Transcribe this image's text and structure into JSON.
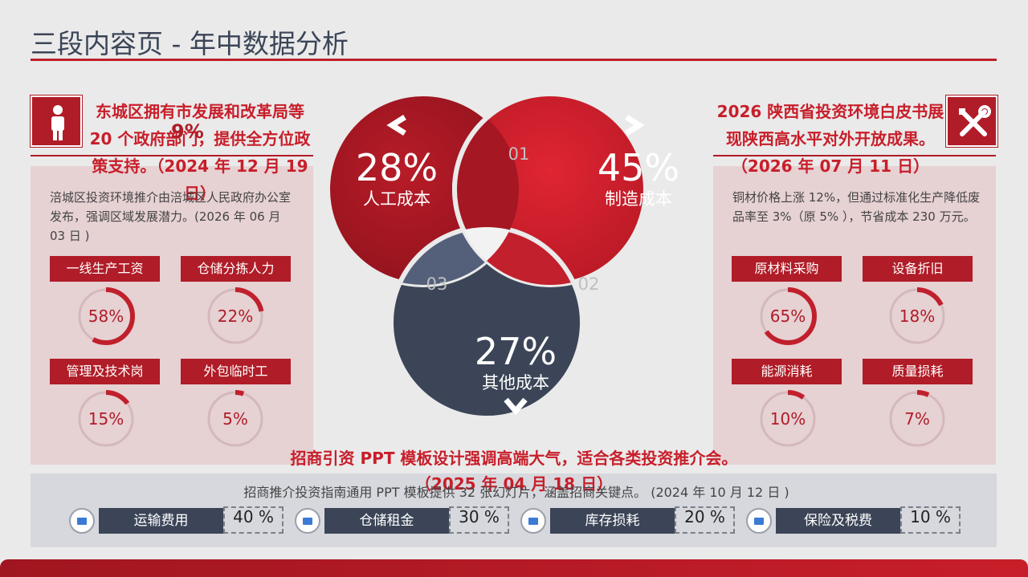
{
  "page": {
    "title": "三段内容页 - 年中数据分析"
  },
  "left": {
    "icon": "person-icon",
    "heading": "东城区拥有市发展和改革局等 20 个政府部门，提供全方位政策支持。（2024 年 12 月 19 日）",
    "overlay_pct": "9%",
    "description": "涪城区投资环境推介由涪城区人民政府办公室发布，强调区域发展潜力。(2026 年 06 月 03 日 )",
    "items": [
      {
        "label": "一线生产工资",
        "value": "58%",
        "fraction": 0.58
      },
      {
        "label": "仓储分拣人力",
        "value": "22%",
        "fraction": 0.22
      },
      {
        "label": "管理及技术岗",
        "value": "15%",
        "fraction": 0.15
      },
      {
        "label": "外包临时工",
        "value": "5%",
        "fraction": 0.05
      }
    ]
  },
  "right": {
    "icon": "tools-icon",
    "heading": "2026 陕西省投资环境白皮书展现陕西高水平对外开放成果。（2026 年 07 月 11 日）",
    "description": "铜材价格上涨 12%，但通过标准化生产降低废品率至 3%（原 5% ），节省成本 230 万元。",
    "items": [
      {
        "label": "原材料采购",
        "value": "65%",
        "fraction": 0.65
      },
      {
        "label": "设备折旧",
        "value": "18%",
        "fraction": 0.18
      },
      {
        "label": "能源消耗",
        "value": "10%",
        "fraction": 0.1
      },
      {
        "label": "质量损耗",
        "value": "7%",
        "fraction": 0.07
      }
    ]
  },
  "venn": {
    "labor": {
      "pct": "28%",
      "label": "人工成本",
      "num": "01"
    },
    "manufacturing": {
      "pct": "45%",
      "label": "制造成本",
      "num": "02"
    },
    "other": {
      "pct": "27%",
      "label": "其他成本",
      "num": "03"
    },
    "colors": {
      "red_dark": "#a51722",
      "red": "#d0202e",
      "navy": "#3b4557"
    }
  },
  "middle": {
    "heading": "招商引资 PPT 模板设计强调高端大气，适合各类投资推介会。（2025 年 04 月 18 日）",
    "description": "招商推介投资指南通用 PPT 模板提供 32 张幻灯片，涵盖招商关键点。 (2024 年 10 月 12 日 )"
  },
  "categories": [
    {
      "label": "运输费用",
      "value": "40 %"
    },
    {
      "label": "仓储租金",
      "value": "30 %"
    },
    {
      "label": "库存损耗",
      "value": "20 %"
    },
    {
      "label": "保险及税费",
      "value": "10 %"
    }
  ],
  "colors": {
    "accent": "#c0202c",
    "navy": "#3b4557",
    "panel": "#e6d1d3"
  }
}
